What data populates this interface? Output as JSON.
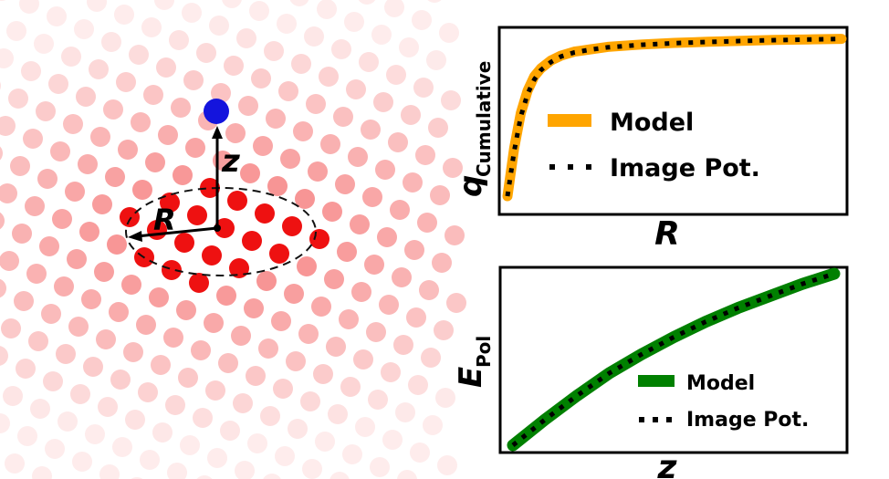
{
  "scene": {
    "labels": {
      "r": "R",
      "z": "z"
    },
    "colors": {
      "atom_near": "#ee1111",
      "atom_far": "#fdd6d6",
      "adsorbate": "#1414dd"
    }
  },
  "chart_data": [
    {
      "type": "line",
      "xlabel": "R",
      "ylabel_main": "q",
      "ylabel_sub": "Cumulative",
      "legend_position": "center-right",
      "series": [
        {
          "name": "Model",
          "color": "#ffa500",
          "style": "solid",
          "x": [
            0.0,
            0.02,
            0.04,
            0.06,
            0.08,
            0.1,
            0.13,
            0.16,
            0.2,
            0.25,
            0.3,
            0.4,
            0.5,
            0.6,
            0.7,
            0.8,
            0.9,
            1.0
          ],
          "y": [
            0.0,
            0.3,
            0.52,
            0.66,
            0.75,
            0.8,
            0.85,
            0.88,
            0.905,
            0.92,
            0.935,
            0.95,
            0.96,
            0.967,
            0.973,
            0.978,
            0.982,
            0.985
          ]
        },
        {
          "name": "Image Pot.",
          "color": "#000000",
          "style": "dotted",
          "x": [
            0.0,
            0.02,
            0.04,
            0.06,
            0.08,
            0.1,
            0.13,
            0.16,
            0.2,
            0.25,
            0.3,
            0.4,
            0.5,
            0.6,
            0.7,
            0.8,
            0.9,
            1.0
          ],
          "y": [
            0.0,
            0.28,
            0.5,
            0.64,
            0.73,
            0.79,
            0.84,
            0.875,
            0.9,
            0.918,
            0.932,
            0.948,
            0.958,
            0.966,
            0.972,
            0.977,
            0.981,
            0.985
          ]
        }
      ]
    },
    {
      "type": "line",
      "xlabel": "z",
      "ylabel_main": "E",
      "ylabel_sub": "Pol",
      "legend_position": "lower-right",
      "series": [
        {
          "name": "Model",
          "color": "#008000",
          "style": "solid",
          "x": [
            0.0,
            0.1,
            0.2,
            0.3,
            0.4,
            0.5,
            0.6,
            0.7,
            0.8,
            0.9,
            1.0
          ],
          "y": [
            0.0,
            0.15,
            0.29,
            0.42,
            0.53,
            0.63,
            0.72,
            0.8,
            0.87,
            0.94,
            1.0
          ]
        },
        {
          "name": "Image Pot.",
          "color": "#000000",
          "style": "dotted",
          "x": [
            0.0,
            0.1,
            0.2,
            0.3,
            0.4,
            0.5,
            0.6,
            0.7,
            0.8,
            0.9,
            1.0
          ],
          "y": [
            0.0,
            0.15,
            0.29,
            0.42,
            0.53,
            0.63,
            0.72,
            0.8,
            0.87,
            0.94,
            1.0
          ]
        }
      ]
    }
  ]
}
